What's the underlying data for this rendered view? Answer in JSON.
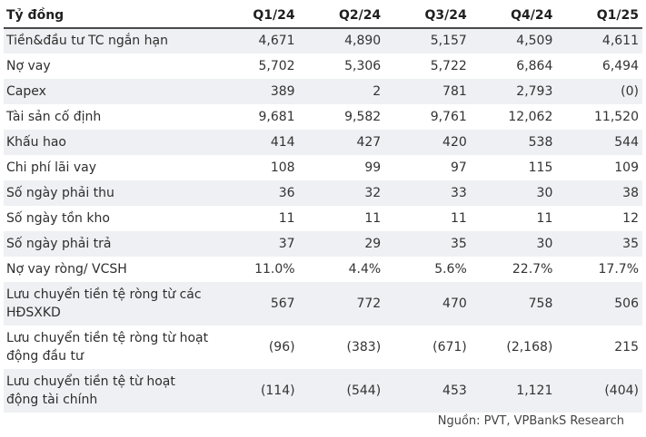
{
  "table": {
    "header": [
      "Tỷ đồng",
      "Q1/24",
      "Q2/24",
      "Q3/24",
      "Q4/24",
      "Q1/25"
    ],
    "rows": [
      {
        "label": "Tiền&đầu tư TC ngắn hạn",
        "values": [
          "4,671",
          "4,890",
          "5,157",
          "4,509",
          "4,611"
        ]
      },
      {
        "label": "Nợ vay",
        "values": [
          "5,702",
          "5,306",
          "5,722",
          "6,864",
          "6,494"
        ]
      },
      {
        "label": "Capex",
        "values": [
          "389",
          "2",
          "781",
          "2,793",
          "(0)"
        ]
      },
      {
        "label": "Tài sản cố định",
        "values": [
          "9,681",
          "9,582",
          "9,761",
          "12,062",
          "11,520"
        ]
      },
      {
        "label": "Khấu hao",
        "values": [
          "414",
          "427",
          "420",
          "538",
          "544"
        ]
      },
      {
        "label": "Chi phí lãi vay",
        "values": [
          "108",
          "99",
          "97",
          "115",
          "109"
        ]
      },
      {
        "label": "Số ngày phải thu",
        "values": [
          "36",
          "32",
          "33",
          "30",
          "38"
        ]
      },
      {
        "label": "Số ngày tồn kho",
        "values": [
          "11",
          "11",
          "11",
          "11",
          "12"
        ]
      },
      {
        "label": "Số ngày phải trả",
        "values": [
          "37",
          "29",
          "35",
          "30",
          "35"
        ]
      },
      {
        "label": "Nợ vay ròng/ VCSH",
        "values": [
          "11.0%",
          "4.4%",
          "5.6%",
          "22.7%",
          "17.7%"
        ]
      },
      {
        "label": "Lưu chuyển tiền tệ ròng từ các HĐSXKD",
        "values": [
          "567",
          "772",
          "470",
          "758",
          "506"
        ]
      },
      {
        "label": "Lưu chuyển tiền tệ ròng từ hoạt động đầu tư",
        "values": [
          "(96)",
          "(383)",
          "(671)",
          "(2,168)",
          "215"
        ]
      },
      {
        "label": "Lưu chuyển tiền tệ từ hoạt động tài chính",
        "values": [
          "(114)",
          "(544)",
          "453",
          "1,121",
          "(404)"
        ]
      }
    ]
  },
  "source": "Nguồn: PVT, VPBankS Research"
}
